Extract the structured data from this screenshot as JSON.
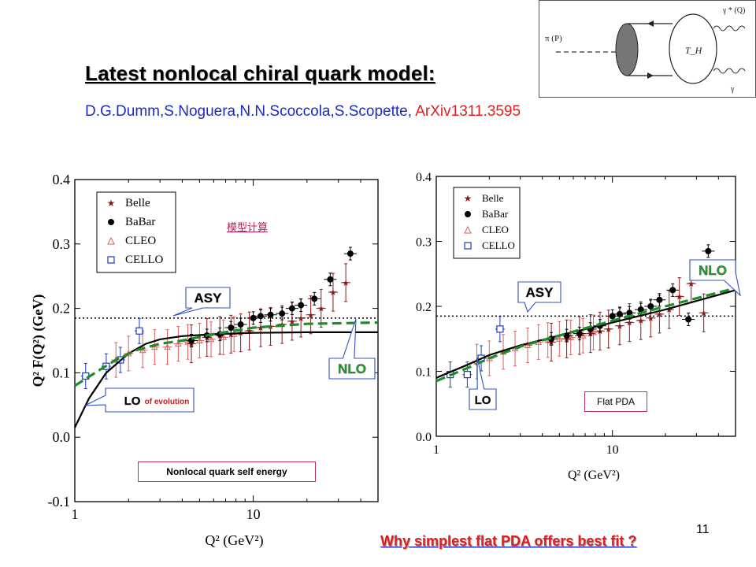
{
  "slide": {
    "title": "Latest nonlocal chiral quark model:",
    "authors": "D.G.Dumm,S.Noguera,N.N.Scoccola,S.Scopette,",
    "arxiv": "ArXiv1311.3595",
    "chinese_link": "模型计算",
    "page_number": "11",
    "bottom_link": "Why simplest flat PDA offers best fit ?"
  },
  "diagram": {
    "gamma_star_label": "γ * (Q)",
    "pi_label": "π (P)",
    "gamma_label": "γ",
    "th_label": "T_H"
  },
  "colors": {
    "belle": "#8b1a1a",
    "babar": "#000000",
    "cleo": "#e06060",
    "cello": "#1a3cc4",
    "asy_line": "#000000",
    "nlo_curve": "#1e8c2a",
    "lo_curve": "#000000",
    "callout_border": "#3050c0",
    "nlo_text": "#1fa52a",
    "title_link": "#1a2cc4",
    "accent_red": "#e02020"
  },
  "chart_data": [
    {
      "type": "scatter",
      "xlabel": "Q² (GeV²)",
      "ylabel": "Q² F(Q²) (GeV)",
      "xscale": "log",
      "xlim": [
        1,
        50
      ],
      "ylim": [
        -0.1,
        0.4
      ],
      "x_ticks": [
        "1",
        "10"
      ],
      "y_ticks": [
        "-0.1",
        "0.0",
        "0.1",
        "0.2",
        "0.3",
        "0.4"
      ],
      "legend": {
        "position": "top-left",
        "entries": [
          "Belle",
          "BaBar",
          "CLEO",
          "CELLO"
        ]
      },
      "asymptotic_value": 0.185,
      "series": [
        {
          "name": "CELLO",
          "marker": "square-open",
          "points": [
            [
              1.15,
              0.095
            ],
            [
              1.5,
              0.11
            ],
            [
              1.8,
              0.12
            ],
            [
              2.3,
              0.165
            ]
          ]
        },
        {
          "name": "CLEO",
          "marker": "triangle-open",
          "points": [
            [
              1.7,
              0.12
            ],
            [
              2.0,
              0.13
            ],
            [
              2.4,
              0.135
            ],
            [
              2.8,
              0.14
            ],
            [
              3.3,
              0.14
            ],
            [
              3.8,
              0.145
            ],
            [
              4.3,
              0.148
            ],
            [
              5.0,
              0.15
            ],
            [
              5.8,
              0.152
            ],
            [
              6.8,
              0.155
            ],
            [
              7.8,
              0.16
            ]
          ]
        },
        {
          "name": "BaBar",
          "marker": "circle-filled",
          "points": [
            [
              4.5,
              0.15
            ],
            [
              5.5,
              0.158
            ],
            [
              6.5,
              0.16
            ],
            [
              7.5,
              0.17
            ],
            [
              8.5,
              0.175
            ],
            [
              10.0,
              0.185
            ],
            [
              11.0,
              0.188
            ],
            [
              12.5,
              0.19
            ],
            [
              14.5,
              0.192
            ],
            [
              16.5,
              0.2
            ],
            [
              18.5,
              0.205
            ],
            [
              22.0,
              0.215
            ],
            [
              27.0,
              0.245
            ],
            [
              35.0,
              0.285
            ]
          ]
        },
        {
          "name": "Belle",
          "marker": "star",
          "points": [
            [
              4.5,
              0.145
            ],
            [
              5.5,
              0.155
            ],
            [
              6.5,
              0.158
            ],
            [
              7.5,
              0.16
            ],
            [
              8.5,
              0.162
            ],
            [
              9.5,
              0.165
            ],
            [
              11.0,
              0.17
            ],
            [
              12.5,
              0.172
            ],
            [
              14.5,
              0.175
            ],
            [
              16.5,
              0.18
            ],
            [
              18.5,
              0.185
            ],
            [
              21.0,
              0.19
            ],
            [
              24.0,
              0.2
            ],
            [
              28.0,
              0.225
            ],
            [
              33.0,
              0.24
            ]
          ]
        }
      ],
      "curves": [
        {
          "name": "LO",
          "points": [
            [
              1.0,
              0.015
            ],
            [
              1.2,
              0.06
            ],
            [
              1.5,
              0.1
            ],
            [
              2.0,
              0.13
            ],
            [
              2.5,
              0.145
            ],
            [
              3.0,
              0.152
            ],
            [
              4.0,
              0.157
            ],
            [
              6.0,
              0.16
            ],
            [
              10.0,
              0.162
            ],
            [
              20.0,
              0.163
            ],
            [
              50.0,
              0.163
            ]
          ]
        },
        {
          "name": "NLO",
          "points": [
            [
              1.0,
              0.08
            ],
            [
              1.3,
              0.1
            ],
            [
              1.7,
              0.12
            ],
            [
              2.2,
              0.135
            ],
            [
              3.0,
              0.145
            ],
            [
              4.0,
              0.15
            ],
            [
              6.0,
              0.16
            ],
            [
              10.0,
              0.17
            ],
            [
              20.0,
              0.176
            ],
            [
              50.0,
              0.178
            ]
          ]
        }
      ],
      "annotations": {
        "asy": "ASY",
        "nlo": "NLO",
        "lo": "LO",
        "lo_suffix": "of evolution",
        "box": "Nonlocal quark self energy"
      }
    },
    {
      "type": "scatter",
      "xlabel": "Q² (GeV²)",
      "ylabel": "",
      "xscale": "log",
      "xlim": [
        1,
        50
      ],
      "ylim": [
        0.0,
        0.4
      ],
      "x_ticks": [
        "1",
        "10"
      ],
      "y_ticks": [
        "0.0",
        "0.1",
        "0.2",
        "0.3",
        "0.4"
      ],
      "legend": {
        "position": "top-left",
        "entries": [
          "Belle",
          "BaBar",
          "CLEO",
          "CELLO"
        ]
      },
      "asymptotic_value": 0.185,
      "series": [
        {
          "name": "CELLO",
          "marker": "square-open",
          "points": [
            [
              1.2,
              0.095
            ],
            [
              1.5,
              0.095
            ],
            [
              1.8,
              0.12
            ],
            [
              2.3,
              0.165
            ]
          ]
        },
        {
          "name": "CLEO",
          "marker": "triangle-open",
          "points": [
            [
              1.7,
              0.115
            ],
            [
              2.0,
              0.12
            ],
            [
              2.4,
              0.13
            ],
            [
              2.8,
              0.135
            ],
            [
              3.3,
              0.14
            ],
            [
              3.8,
              0.145
            ],
            [
              4.3,
              0.148
            ],
            [
              5.0,
              0.15
            ],
            [
              5.8,
              0.152
            ],
            [
              6.8,
              0.155
            ],
            [
              7.8,
              0.16
            ]
          ]
        },
        {
          "name": "BaBar",
          "marker": "circle-filled",
          "points": [
            [
              4.5,
              0.15
            ],
            [
              5.5,
              0.155
            ],
            [
              6.5,
              0.158
            ],
            [
              7.5,
              0.165
            ],
            [
              8.5,
              0.17
            ],
            [
              10.0,
              0.185
            ],
            [
              11.0,
              0.188
            ],
            [
              12.5,
              0.19
            ],
            [
              14.5,
              0.195
            ],
            [
              16.5,
              0.2
            ],
            [
              18.5,
              0.21
            ],
            [
              22.0,
              0.225
            ],
            [
              27.0,
              0.18
            ],
            [
              35.0,
              0.285
            ]
          ]
        },
        {
          "name": "Belle",
          "marker": "star",
          "points": [
            [
              4.5,
              0.145
            ],
            [
              5.5,
              0.15
            ],
            [
              6.5,
              0.155
            ],
            [
              7.5,
              0.158
            ],
            [
              8.5,
              0.162
            ],
            [
              9.5,
              0.165
            ],
            [
              11.0,
              0.17
            ],
            [
              12.5,
              0.175
            ],
            [
              14.5,
              0.178
            ],
            [
              16.5,
              0.182
            ],
            [
              18.5,
              0.188
            ],
            [
              21.0,
              0.195
            ],
            [
              24.0,
              0.215
            ],
            [
              28.0,
              0.235
            ],
            [
              33.0,
              0.19
            ]
          ]
        }
      ],
      "curves": [
        {
          "name": "LO",
          "points": [
            [
              1.0,
              0.09
            ],
            [
              1.5,
              0.11
            ],
            [
              2.0,
              0.125
            ],
            [
              3.0,
              0.14
            ],
            [
              5.0,
              0.155
            ],
            [
              10.0,
              0.175
            ],
            [
              20.0,
              0.195
            ],
            [
              50.0,
              0.225
            ]
          ]
        },
        {
          "name": "NLO",
          "points": [
            [
              1.0,
              0.085
            ],
            [
              1.5,
              0.105
            ],
            [
              2.0,
              0.12
            ],
            [
              3.0,
              0.138
            ],
            [
              5.0,
              0.155
            ],
            [
              10.0,
              0.178
            ],
            [
              20.0,
              0.2
            ],
            [
              50.0,
              0.228
            ]
          ]
        }
      ],
      "annotations": {
        "asy": "ASY",
        "nlo": "NLO",
        "lo": "LO",
        "box": "Flat PDA"
      }
    }
  ]
}
